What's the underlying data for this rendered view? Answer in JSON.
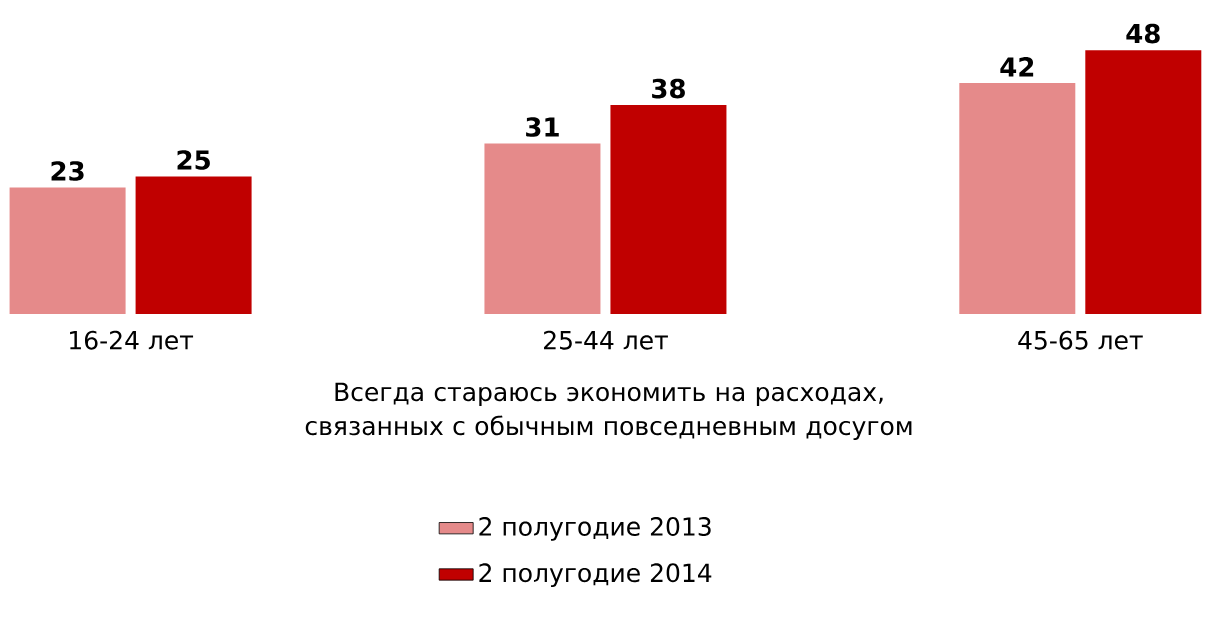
{
  "chart_data": {
    "type": "bar",
    "xlabel": "Всегда стараюсь экономить на расходах, связанных с обычным повседневным досугом",
    "categories": [
      "16-24 лет",
      "25-44 лет",
      "45-65 лет"
    ],
    "series": [
      {
        "name": "2 полугодие 2013",
        "color": "#e58a8a",
        "values": [
          23,
          31,
          42
        ]
      },
      {
        "name": "2 полугодие 2014",
        "color": "#c00000",
        "values": [
          25,
          38,
          48
        ]
      }
    ],
    "data_labels": true,
    "legend": "bottom"
  }
}
